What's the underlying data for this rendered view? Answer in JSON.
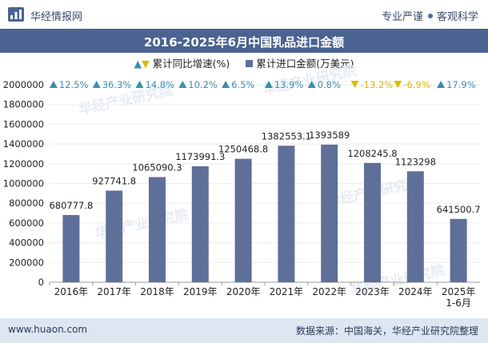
{
  "header": {
    "brand": "华经情报网",
    "tagline_left": "专业严谨",
    "tagline_right": "客观科学"
  },
  "title": "2016-2025年6月中国乳品进口金额",
  "legend": {
    "growth_label": "累计同比增速(%)",
    "value_label": "累计进口金额(万美元)"
  },
  "footer": {
    "url": "www.huaon.com",
    "source": "数据来源：中国海关，华经产业研究院整理"
  },
  "watermark": "华经产业研究院",
  "colors": {
    "bar": "#5e6f9a",
    "up": "#3a8fb0",
    "down": "#e0b800",
    "title_bg": "#4a6391",
    "footer_bg": "#dde6f1"
  },
  "chart_data": {
    "type": "bar",
    "title": "2016-2025年6月中国乳品进口金额",
    "categories": [
      "2016年",
      "2017年",
      "2018年",
      "2019年",
      "2020年",
      "2021年",
      "2022年",
      "2023年",
      "2024年",
      "2025年\n1-6月"
    ],
    "series": [
      {
        "name": "累计进口金额(万美元)",
        "values": [
          680777.8,
          927741.8,
          1065090.3,
          1173991.3,
          1250468.8,
          1382553.1,
          1393589,
          1208245.8,
          1123298,
          641500.7
        ],
        "labels": [
          "680777.8",
          "927741.8",
          "1065090.3",
          "1173991.3",
          "1250468.8",
          "1382553.1",
          "1393589",
          "1208245.8",
          "1123298",
          "641500.7"
        ]
      },
      {
        "name": "累计同比增速(%)",
        "values": [
          12.5,
          36.3,
          14.8,
          10.2,
          6.5,
          13.9,
          0.8,
          -13.2,
          -6.9,
          17.9
        ],
        "labels": [
          "12.5%",
          "36.3%",
          "14.8%",
          "10.2%",
          "6.5%",
          "13.9%",
          "0.8%",
          "-13.2%",
          "-6.9%",
          "17.9%"
        ]
      }
    ],
    "ylim": [
      0,
      2000000
    ],
    "yticks": [
      0,
      200000,
      400000,
      600000,
      800000,
      1000000,
      1200000,
      1400000,
      1600000,
      1800000,
      2000000
    ],
    "ytick_labels": [
      "0",
      "200000",
      "400000",
      "600000",
      "800000",
      "1000000",
      "1200000",
      "1400000",
      "1600000",
      "1800000",
      "2000000"
    ],
    "xlabel": "",
    "ylabel": ""
  }
}
